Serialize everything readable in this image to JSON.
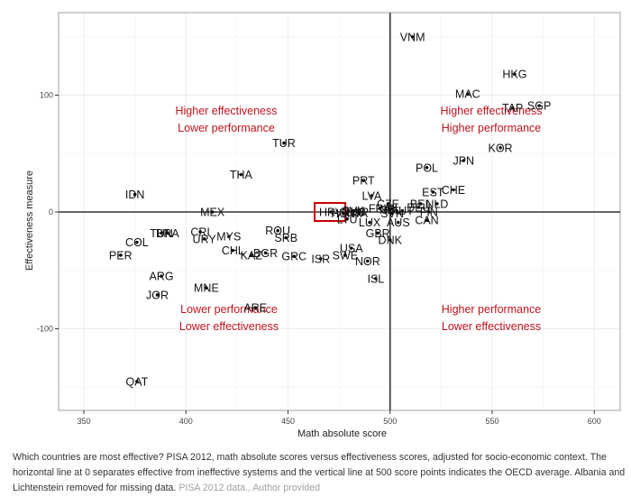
{
  "chart_data": {
    "type": "scatter",
    "title": "",
    "xlabel": "Math absolute score",
    "ylabel": "Effectiveness measure",
    "xlim": [
      340,
      614
    ],
    "ylim": [
      -170,
      170
    ],
    "xticks": [
      350,
      400,
      450,
      500,
      550,
      600
    ],
    "yticks": [
      100,
      0,
      -100
    ],
    "grid": true,
    "reference_lines": {
      "horizontal_y": 0,
      "vertical_x": 500
    },
    "highlight": {
      "label": "HRV",
      "color": "#cc0000"
    },
    "quadrant_annotations": [
      {
        "lines": [
          "Higher effectiveness",
          "Lower performance"
        ],
        "position": "top-left"
      },
      {
        "lines": [
          "Higher effectiveness",
          "Higher performance"
        ],
        "position": "top-right"
      },
      {
        "lines": [
          "Lower performance",
          "Lower effectiveness"
        ],
        "position": "bottom-left"
      },
      {
        "lines": [
          "Higher performance",
          "Lower effectiveness"
        ],
        "position": "bottom-right"
      }
    ],
    "annotation_color": "#c0141e",
    "points": [
      {
        "label": "VNM",
        "x": 511,
        "y": 150
      },
      {
        "label": "HKG",
        "x": 561,
        "y": 118
      },
      {
        "label": "MAC",
        "x": 538,
        "y": 101
      },
      {
        "label": "TAP",
        "x": 560,
        "y": 89
      },
      {
        "label": "SGP",
        "x": 573,
        "y": 91
      },
      {
        "label": "KOR",
        "x": 554,
        "y": 55
      },
      {
        "label": "JPN",
        "x": 536,
        "y": 44
      },
      {
        "label": "POL",
        "x": 518,
        "y": 38
      },
      {
        "label": "TUR",
        "x": 448,
        "y": 59
      },
      {
        "label": "THA",
        "x": 427,
        "y": 32
      },
      {
        "label": "IDN",
        "x": 375,
        "y": 15
      },
      {
        "label": "PRT",
        "x": 487,
        "y": 27
      },
      {
        "label": "LVA",
        "x": 491,
        "y": 14
      },
      {
        "label": "EST",
        "x": 521,
        "y": 17
      },
      {
        "label": "CHE",
        "x": 531,
        "y": 19
      },
      {
        "label": "CZE",
        "x": 499,
        "y": 7
      },
      {
        "label": "BEL",
        "x": 515,
        "y": 7
      },
      {
        "label": "NLD",
        "x": 523,
        "y": 7
      },
      {
        "label": "DEU",
        "x": 514,
        "y": 4
      },
      {
        "label": "IRL",
        "x": 501,
        "y": 3
      },
      {
        "label": "AUT",
        "x": 506,
        "y": 1
      },
      {
        "label": "FRA",
        "x": 495,
        "y": 3
      },
      {
        "label": "NZL",
        "x": 500,
        "y": 2
      },
      {
        "label": "FIN",
        "x": 519,
        "y": 0
      },
      {
        "label": "HRV",
        "x": 471,
        "y": 0
      },
      {
        "label": "ITA",
        "x": 485,
        "y": -1
      },
      {
        "label": "ESP",
        "x": 484,
        "y": 0
      },
      {
        "label": "RUS",
        "x": 482,
        "y": 0
      },
      {
        "label": "SVK",
        "x": 482,
        "y": 1
      },
      {
        "label": "HUN",
        "x": 477,
        "y": -1
      },
      {
        "label": "LTU",
        "x": 479,
        "y": -6
      },
      {
        "label": "SVN",
        "x": 501,
        "y": -1
      },
      {
        "label": "CAN",
        "x": 518,
        "y": -7
      },
      {
        "label": "AUS",
        "x": 504,
        "y": -9
      },
      {
        "label": "LUX",
        "x": 490,
        "y": -9
      },
      {
        "label": "GBR",
        "x": 494,
        "y": -18
      },
      {
        "label": "DNK",
        "x": 500,
        "y": -24
      },
      {
        "label": "USA",
        "x": 481,
        "y": -31
      },
      {
        "label": "SWE",
        "x": 478,
        "y": -37
      },
      {
        "label": "NOR",
        "x": 489,
        "y": -42
      },
      {
        "label": "ISR",
        "x": 466,
        "y": -40
      },
      {
        "label": "ISL",
        "x": 493,
        "y": -57
      },
      {
        "label": "MEX",
        "x": 413,
        "y": 0
      },
      {
        "label": "ROU",
        "x": 445,
        "y": -16
      },
      {
        "label": "SRB",
        "x": 449,
        "y": -22
      },
      {
        "label": "GRC",
        "x": 453,
        "y": -38
      },
      {
        "label": "BGR",
        "x": 439,
        "y": -35
      },
      {
        "label": "KAZ",
        "x": 432,
        "y": -37
      },
      {
        "label": "CHL",
        "x": 423,
        "y": -33
      },
      {
        "label": "MYS",
        "x": 421,
        "y": -21
      },
      {
        "label": "URY",
        "x": 409,
        "y": -23
      },
      {
        "label": "CRI",
        "x": 407,
        "y": -17
      },
      {
        "label": "BRA",
        "x": 391,
        "y": -18
      },
      {
        "label": "TUN",
        "x": 388,
        "y": -18
      },
      {
        "label": "COL",
        "x": 376,
        "y": -26
      },
      {
        "label": "PER",
        "x": 368,
        "y": -37
      },
      {
        "label": "ARG",
        "x": 388,
        "y": -55
      },
      {
        "label": "JOR",
        "x": 386,
        "y": -71
      },
      {
        "label": "MNE",
        "x": 410,
        "y": -65
      },
      {
        "label": "ARE",
        "x": 434,
        "y": -82
      },
      {
        "label": "QAT",
        "x": 376,
        "y": -145
      }
    ]
  },
  "caption": {
    "text": "Which countries are most effective? PISA 2012, math absolute scores versus effectiveness scores, adjusted for socio-economic context. The horizontal line at 0 separates effective from ineffective systems and the vertical line at 500 score points indicates the OECD average. Albania and Lichtenstein removed for missing data.",
    "source": "PISA 2012 data., Author provided"
  }
}
